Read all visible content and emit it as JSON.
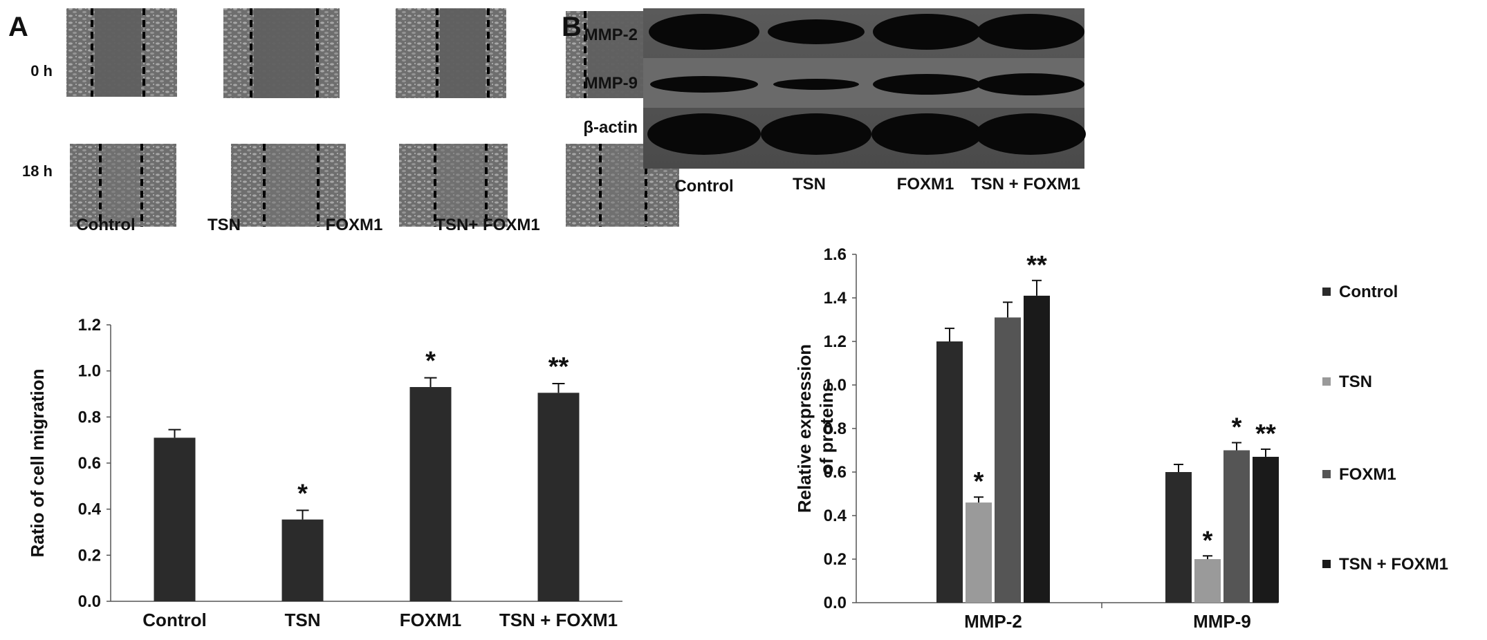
{
  "panel_a": {
    "letter": "A",
    "row_labels": [
      "0 h",
      "18 h"
    ],
    "image_labels": [
      "Control",
      "TSN",
      "FOXM1",
      "TSN+ FOXM1"
    ]
  },
  "panel_b": {
    "letter": "B",
    "blot_rows": [
      "MMP-2",
      "MMP-9",
      "β-actin"
    ],
    "blot_lanes": [
      "Control",
      "TSN",
      "FOXM1",
      "TSN + FOXM1"
    ]
  },
  "colors": {
    "dark_bar": "#2b2b2b",
    "light_bar": "#9a9a9a",
    "mid_bar": "#555555",
    "black_bar": "#1a1a1a"
  },
  "chart_data": [
    {
      "type": "bar",
      "ylabel": "Ratio of cell migration",
      "xlabel": "",
      "categories": [
        "Control",
        "TSN",
        "FOXM1",
        "TSN + FOXM1"
      ],
      "values": [
        0.71,
        0.355,
        0.93,
        0.905
      ],
      "errors": [
        0.035,
        0.04,
        0.04,
        0.04
      ],
      "significance": [
        "",
        "*",
        "*",
        "**"
      ],
      "ylim": [
        0,
        1.2
      ],
      "yticks": [
        "0.0",
        "0.2",
        "0.4",
        "0.6",
        "0.8",
        "1.0",
        "1.2"
      ],
      "grid": false
    },
    {
      "type": "bar",
      "ylabel": "Relative expression of proteins",
      "xlabel": "",
      "categories": [
        "MMP-2",
        "MMP-9"
      ],
      "series": [
        {
          "name": "Control",
          "values": [
            1.2,
            0.6
          ],
          "errors": [
            0.06,
            0.035
          ],
          "significance": [
            "",
            ""
          ]
        },
        {
          "name": "TSN",
          "values": [
            0.46,
            0.2
          ],
          "errors": [
            0.025,
            0.015
          ],
          "significance": [
            "*",
            "*"
          ]
        },
        {
          "name": "FOXM1",
          "values": [
            1.31,
            0.7
          ],
          "errors": [
            0.07,
            0.035
          ],
          "significance": [
            "",
            "*"
          ]
        },
        {
          "name": "TSN + FOXM1",
          "values": [
            1.41,
            0.67
          ],
          "errors": [
            0.07,
            0.035
          ],
          "significance": [
            "**",
            "**"
          ]
        }
      ],
      "ylim": [
        0,
        1.6
      ],
      "yticks": [
        "0.0",
        "0.2",
        "0.4",
        "0.6",
        "0.8",
        "1.0",
        "1.2",
        "1.4",
        "1.6"
      ],
      "legend_position": "right",
      "grid": false
    }
  ]
}
